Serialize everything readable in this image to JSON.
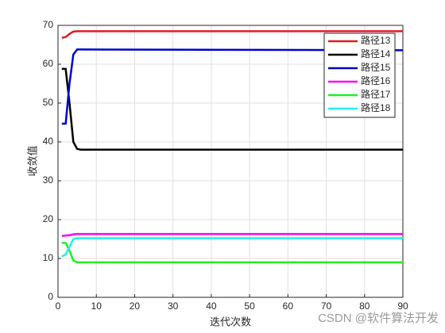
{
  "chart_data": {
    "type": "line",
    "x_label": "迭代次数",
    "y_label": "收敛值",
    "x": [
      1,
      2,
      3,
      4,
      5,
      6,
      90
    ],
    "series": [
      {
        "name": "路径13",
        "color": "#e41a1c",
        "values": [
          66.8,
          67,
          67.8,
          68.4,
          68.5,
          68.5,
          68.5
        ]
      },
      {
        "name": "路径14",
        "color": "#000000",
        "values": [
          58.8,
          58.8,
          50,
          40,
          38.2,
          38,
          38
        ]
      },
      {
        "name": "路径15",
        "color": "#0000cc",
        "values": [
          44.7,
          44.7,
          55,
          62.5,
          63.8,
          63.8,
          63.6
        ]
      },
      {
        "name": "路径16",
        "color": "#ff00ff",
        "values": [
          15.8,
          15.9,
          16,
          16.2,
          16.3,
          16.3,
          16.3
        ]
      },
      {
        "name": "路径17",
        "color": "#22ee22",
        "values": [
          14,
          14,
          12,
          9.5,
          9,
          9,
          9
        ]
      },
      {
        "name": "路径18",
        "color": "#22eeee",
        "values": [
          10.5,
          11,
          13,
          15,
          15.2,
          15.2,
          15.2
        ]
      }
    ],
    "xlim": [
      0,
      90
    ],
    "xticks": [
      0,
      10,
      20,
      30,
      40,
      50,
      60,
      70,
      80,
      90
    ],
    "ylim": [
      0,
      70
    ],
    "yticks": [
      0,
      10,
      20,
      30,
      40,
      50,
      60,
      70
    ],
    "grid": true,
    "legend": "top-right",
    "watermark": "CSDN @软件算法开发"
  }
}
